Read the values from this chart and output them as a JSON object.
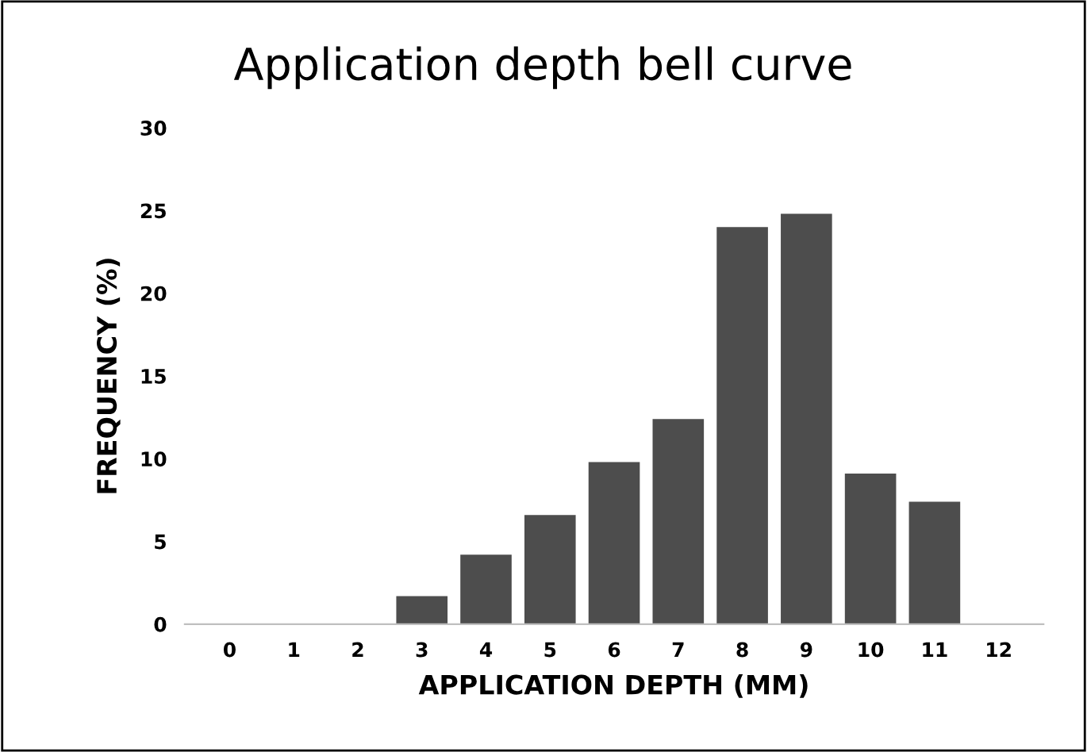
{
  "chart_data": {
    "type": "bar",
    "title": "Application depth bell curve",
    "xlabel": "APPLICATION DEPTH (MM)",
    "ylabel": "FREQUENCY (%)",
    "categories": [
      "0",
      "1",
      "2",
      "3",
      "4",
      "5",
      "6",
      "7",
      "8",
      "9",
      "10",
      "11",
      "12"
    ],
    "values": [
      0,
      0,
      0,
      1.7,
      4.2,
      6.6,
      9.8,
      12.4,
      24.0,
      24.8,
      9.1,
      7.4,
      0
    ],
    "color": "#4d4d4d",
    "ylim": [
      0,
      30
    ],
    "yticks": [
      0,
      5,
      10,
      15,
      20,
      25,
      30
    ],
    "grid": false
  }
}
